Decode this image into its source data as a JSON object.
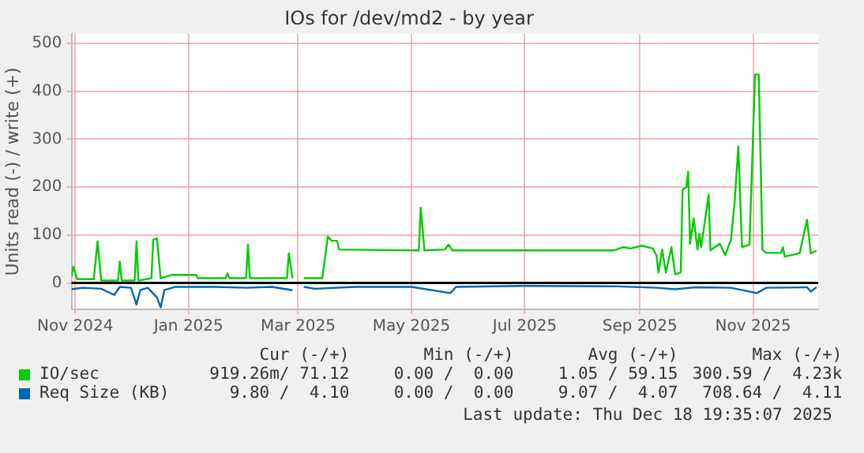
{
  "chart_data": {
    "type": "line",
    "title": "IOs for /dev/md2 - by year",
    "ylabel": "Units read (-) / write (+)",
    "xlim": [
      "2024-10-30",
      "2025-12-06"
    ],
    "xticks": [
      {
        "value": "2024-11-01",
        "label": "Nov 2024"
      },
      {
        "value": "2025-01-01",
        "label": "Jan 2025"
      },
      {
        "value": "2025-03-01",
        "label": "Mar 2025"
      },
      {
        "value": "2025-05-01",
        "label": "May 2025"
      },
      {
        "value": "2025-07-01",
        "label": "Jul 2025"
      },
      {
        "value": "2025-09-01",
        "label": "Sep 2025"
      },
      {
        "value": "2025-11-01",
        "label": "Nov 2025"
      }
    ],
    "ylim": [
      -55,
      520
    ],
    "yticks": [
      0,
      100,
      200,
      300,
      400,
      500
    ],
    "grid": true,
    "legend": "bottom",
    "marker": "none",
    "line_style": "solid",
    "ref_lines": [
      {
        "axis": "y",
        "value": 0,
        "color": "#000000"
      }
    ],
    "series": [
      {
        "name": "IO/sec",
        "color": "#00cc00",
        "x": [
          "2024-10-30",
          "2024-10-31",
          "2024-11-02",
          "2024-11-11",
          "2024-11-13",
          "2024-11-15",
          "2024-11-24",
          "2024-11-25",
          "2024-11-26",
          "2024-12-03",
          "2024-12-04",
          "2024-12-05",
          "2024-12-12",
          "2024-12-13",
          "2024-12-15",
          "2024-12-17",
          "2024-12-23",
          "2025-01-05",
          "2025-01-06",
          "2025-01-21",
          "2025-01-22",
          "2025-01-23",
          "2025-02-01",
          "2025-02-02",
          "2025-02-03",
          "2025-02-23",
          "2025-02-24",
          "2025-02-26",
          "2025-02-28",
          "2025-03-04",
          "2025-03-14",
          "2025-03-17",
          "2025-03-19",
          "2025-03-22",
          "2025-03-23",
          "2025-05-03",
          "2025-05-05",
          "2025-05-06",
          "2025-05-08",
          "2025-05-19",
          "2025-05-21",
          "2025-05-23",
          "2025-08-18",
          "2025-08-23",
          "2025-08-27",
          "2025-09-02",
          "2025-09-08",
          "2025-09-10",
          "2025-09-11",
          "2025-09-13",
          "2025-09-15",
          "2025-09-18",
          "2025-09-20",
          "2025-09-23",
          "2025-09-24",
          "2025-09-26",
          "2025-09-27",
          "2025-09-28",
          "2025-09-30",
          "2025-10-02",
          "2025-10-03",
          "2025-10-04",
          "2025-10-08",
          "2025-10-09",
          "2025-10-14",
          "2025-10-17",
          "2025-10-20",
          "2025-10-22",
          "2025-10-24",
          "2025-10-26",
          "2025-10-30",
          "2025-11-02",
          "2025-11-04",
          "2025-11-06",
          "2025-11-08",
          "2025-11-16",
          "2025-11-17",
          "2025-11-18",
          "2025-11-26",
          "2025-11-30",
          "2025-12-02",
          "2025-12-05"
        ],
        "values": [
          15,
          34,
          8,
          8,
          87,
          5,
          5,
          45,
          5,
          5,
          87,
          5,
          10,
          90,
          93,
          10,
          17,
          17,
          10,
          10,
          20,
          10,
          10,
          80,
          10,
          10,
          62,
          10,
          null,
          10,
          10,
          97,
          88,
          88,
          70,
          68,
          68,
          157,
          68,
          70,
          80,
          68,
          68,
          75,
          72,
          78,
          72,
          57,
          22,
          70,
          22,
          75,
          18,
          22,
          195,
          200,
          232,
          82,
          135,
          70,
          103,
          75,
          184,
          68,
          82,
          58,
          90,
          168,
          285,
          75,
          80,
          435,
          435,
          70,
          63,
          63,
          75,
          55,
          62,
          132,
          62,
          67
        ]
      },
      {
        "name": "Req Size (KB)",
        "color": "#0066b3",
        "x": [
          "2024-10-30",
          "2024-11-05",
          "2024-11-15",
          "2024-11-22",
          "2024-11-25",
          "2024-12-01",
          "2024-12-04",
          "2024-12-06",
          "2024-12-10",
          "2024-12-15",
          "2024-12-17",
          "2024-12-19",
          "2024-12-25",
          "2025-01-15",
          "2025-02-01",
          "2025-02-15",
          "2025-02-26",
          "2025-02-28",
          "2025-03-04",
          "2025-03-10",
          "2025-04-01",
          "2025-05-01",
          "2025-05-22",
          "2025-05-25",
          "2025-07-01",
          "2025-08-20",
          "2025-09-10",
          "2025-09-20",
          "2025-10-01",
          "2025-10-20",
          "2025-11-03",
          "2025-11-08",
          "2025-11-30",
          "2025-12-02",
          "2025-12-05"
        ],
        "values": [
          -13,
          -10,
          -12,
          -25,
          -8,
          -10,
          -45,
          -15,
          -10,
          -30,
          -51,
          -15,
          -8,
          -8,
          -10,
          -8,
          -15,
          null,
          -8,
          -12,
          -8,
          -8,
          -21,
          -8,
          -6,
          -7,
          -10,
          -13,
          -9,
          -10,
          -21,
          -10,
          -9,
          -18,
          -9
        ]
      }
    ],
    "annotations": [
      "Cur (-/+)",
      "Min (-/+)",
      "Avg (-/+)",
      "Max (-/+)",
      "919.26m/ 71.12",
      "0.00 /  0.00",
      "1.05 / 59.15",
      "300.59 /  4.23k",
      "9.80 /  4.10",
      "0.00 /  0.00",
      "9.07 /  4.07",
      "708.64 /  4.11",
      "Last update: Thu Dec 18 19:35:07 2025"
    ]
  }
}
